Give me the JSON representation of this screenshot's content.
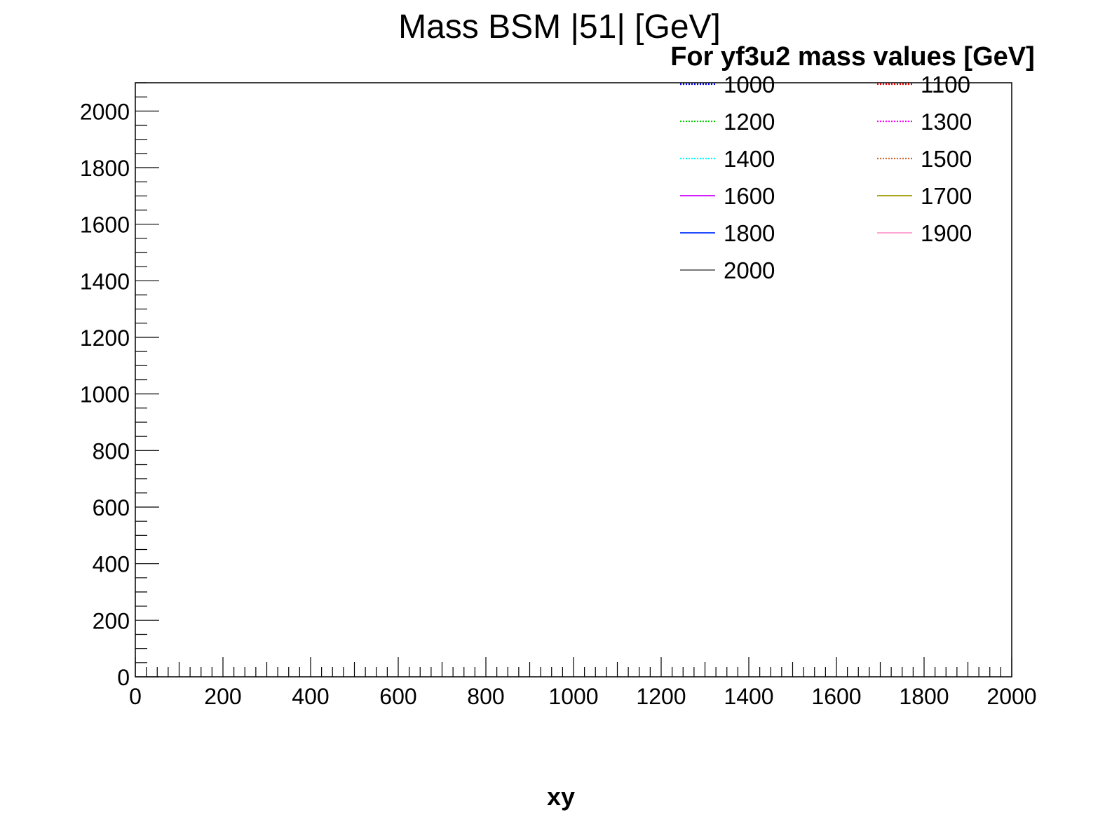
{
  "chart_data": {
    "type": "line",
    "title": "Mass BSM |51| [GeV]",
    "xlabel": "xy",
    "ylabel": "",
    "xlim": [
      0,
      2000
    ],
    "ylim": [
      0,
      2100
    ],
    "x_ticks": [
      0,
      200,
      400,
      600,
      800,
      1000,
      1200,
      1400,
      1600,
      1800,
      2000
    ],
    "y_ticks": [
      0,
      200,
      400,
      600,
      800,
      1000,
      1200,
      1400,
      1600,
      1800,
      2000
    ],
    "grid": false,
    "legend": {
      "title": "For yf3u2 mass values [GeV]",
      "placement": "top-right",
      "columns": 2
    },
    "series": [
      {
        "name": "1000",
        "color": "#0000ff",
        "style": "dotted",
        "values": []
      },
      {
        "name": "1100",
        "color": "#ff0000",
        "style": "dotted",
        "values": []
      },
      {
        "name": "1200",
        "color": "#00cc00",
        "style": "dotted",
        "values": []
      },
      {
        "name": "1300",
        "color": "#ff00ff",
        "style": "dotted",
        "values": []
      },
      {
        "name": "1400",
        "color": "#00ffff",
        "style": "dotted",
        "values": []
      },
      {
        "name": "1500",
        "color": "#cc6633",
        "style": "dotted",
        "values": []
      },
      {
        "name": "1600",
        "color": "#cc00ff",
        "style": "solid",
        "values": []
      },
      {
        "name": "1700",
        "color": "#999900",
        "style": "solid",
        "values": []
      },
      {
        "name": "1800",
        "color": "#0033ff",
        "style": "solid",
        "values": []
      },
      {
        "name": "1900",
        "color": "#ff99cc",
        "style": "solid",
        "values": []
      },
      {
        "name": "2000",
        "color": "#666666",
        "style": "solid",
        "values": []
      }
    ]
  }
}
